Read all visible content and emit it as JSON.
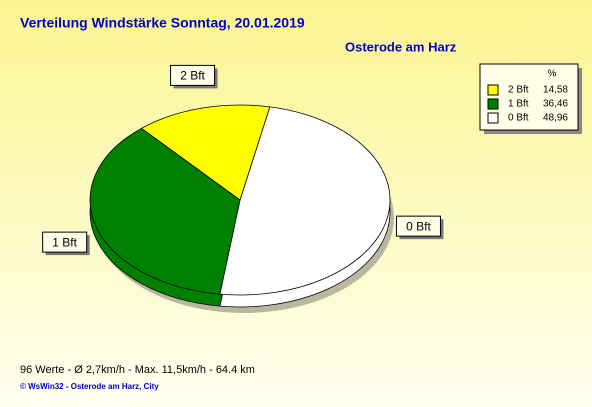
{
  "chart_data": {
    "type": "pie",
    "title": "Verteilung Windstärke  Sonntag, 20.01.2019",
    "subtitle": "Osterode am Harz",
    "legend_header": "%",
    "categories": [
      "2 Bft",
      "1 Bft",
      "0 Bft"
    ],
    "values": [
      14.58,
      36.46,
      48.96
    ],
    "value_labels": [
      "14,58",
      "36,46",
      "48,96"
    ],
    "colors": [
      "#ffff00",
      "#008000",
      "#ffffff"
    ],
    "legend_position": "top-right",
    "footer": "96 Werte   -   Ø 2,7km/h  -  Max. 11,5km/h   -   64.4 km",
    "credit": "© WsWin32  -  Osterode am Harz, City"
  }
}
